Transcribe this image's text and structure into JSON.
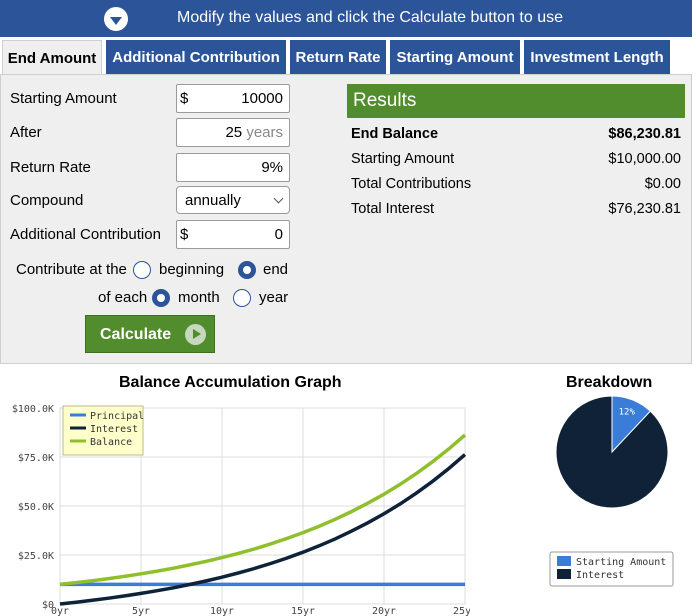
{
  "banner": {
    "message": "Modify the values and click the Calculate button to use"
  },
  "tabs": [
    "End Amount",
    "Additional Contribution",
    "Return Rate",
    "Starting Amount",
    "Investment Length"
  ],
  "form": {
    "starting_amount": {
      "label": "Starting Amount",
      "prefix": "$",
      "value": "10000"
    },
    "after": {
      "label": "After",
      "value": "25",
      "unit": "years"
    },
    "return_rate": {
      "label": "Return Rate",
      "value": "9%"
    },
    "compound": {
      "label": "Compound",
      "value": "annually"
    },
    "additional_contribution": {
      "label": "Additional Contribution",
      "prefix": "$",
      "value": "0"
    },
    "contribute_at": {
      "label": "Contribute at the",
      "options": [
        "beginning",
        "end"
      ],
      "selected": "end"
    },
    "of_each": {
      "label": "of each",
      "options": [
        "month",
        "year"
      ],
      "selected": "month"
    },
    "calculate_label": "Calculate"
  },
  "results": {
    "title": "Results",
    "rows": [
      {
        "label": "End Balance",
        "value": "$86,230.81"
      },
      {
        "label": "Starting Amount",
        "value": "$10,000.00"
      },
      {
        "label": "Total Contributions",
        "value": "$0.00"
      },
      {
        "label": "Total Interest",
        "value": "$76,230.81"
      }
    ]
  },
  "colors": {
    "brand_blue": "#2c5498",
    "brand_green": "#518c2d",
    "principal": "#3a7dd8",
    "interest": "#0f2238",
    "balance": "#8fbf2a"
  },
  "chart_data": [
    {
      "type": "line",
      "title": "Balance Accumulation Graph",
      "y_ticks": [
        "$100.0K",
        "$75.0K",
        "$50.0K",
        "$25.0K",
        "$0"
      ],
      "x_ticks": [
        "0yr",
        "5yr",
        "10yr",
        "15yr",
        "20yr",
        "25yr"
      ],
      "ylim": [
        0,
        100000
      ],
      "xlim": [
        0,
        25
      ],
      "grid": true,
      "legend_position": "top-left",
      "x": [
        0,
        1,
        2,
        3,
        4,
        5,
        6,
        7,
        8,
        9,
        10,
        11,
        12,
        13,
        14,
        15,
        16,
        17,
        18,
        19,
        20,
        21,
        22,
        23,
        24,
        25
      ],
      "series": [
        {
          "name": "Principal",
          "values": [
            10000,
            10000,
            10000,
            10000,
            10000,
            10000,
            10000,
            10000,
            10000,
            10000,
            10000,
            10000,
            10000,
            10000,
            10000,
            10000,
            10000,
            10000,
            10000,
            10000,
            10000,
            10000,
            10000,
            10000,
            10000,
            10000
          ]
        },
        {
          "name": "Interest",
          "values": [
            0,
            900,
            1881,
            2950,
            4116,
            5386,
            6771,
            8280,
            9926,
            11719,
            13674,
            15804,
            18127,
            20658,
            23417,
            26425,
            29703,
            33276,
            37171,
            41417,
            46044,
            51088,
            56586,
            62579,
            69111,
            76231
          ]
        },
        {
          "name": "Balance",
          "values": [
            10000,
            10900,
            11881,
            12950,
            14116,
            15386,
            16771,
            18280,
            19926,
            21719,
            23674,
            25804,
            28127,
            30658,
            33417,
            36425,
            39703,
            43276,
            47171,
            51417,
            56044,
            61088,
            66586,
            72579,
            79111,
            86231
          ]
        }
      ]
    },
    {
      "type": "pie",
      "title": "Breakdown",
      "categories": [
        "Starting Amount",
        "Interest"
      ],
      "values": [
        12,
        88
      ],
      "labels": [
        "12%",
        "88%"
      ]
    }
  ]
}
